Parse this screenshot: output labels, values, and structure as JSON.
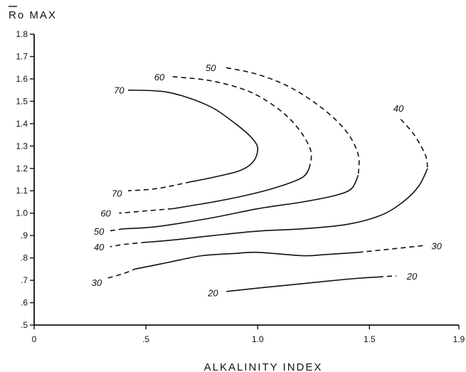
{
  "chart_data": {
    "type": "line",
    "title": "",
    "xlabel": "ALKALINITY INDEX",
    "ylabel_bar": "R",
    "ylabel_rest": "o MAX",
    "xlim": [
      0,
      1.9
    ],
    "ylim": [
      0.5,
      1.8
    ],
    "x_ticks": [
      {
        "value": 0,
        "label": "0"
      },
      {
        "value": 0.5,
        "label": ".5"
      },
      {
        "value": 1.0,
        "label": "1.0"
      },
      {
        "value": 1.5,
        "label": "1.5"
      },
      {
        "value": 1.9,
        "label": "1.9"
      }
    ],
    "y_ticks": [
      {
        "value": 0.5,
        "label": ".5"
      },
      {
        "value": 0.6,
        "label": ".6"
      },
      {
        "value": 0.7,
        "label": ".7"
      },
      {
        "value": 0.8,
        "label": ".8"
      },
      {
        "value": 0.9,
        "label": ".9"
      },
      {
        "value": 1.0,
        "label": "1.0"
      },
      {
        "value": 1.1,
        "label": "1.1"
      },
      {
        "value": 1.2,
        "label": "1.2"
      },
      {
        "value": 1.3,
        "label": "1.3"
      },
      {
        "value": 1.4,
        "label": "1.4"
      },
      {
        "value": 1.5,
        "label": "1.5"
      },
      {
        "value": 1.6,
        "label": "1.6"
      },
      {
        "value": 1.7,
        "label": "1.7"
      },
      {
        "value": 1.8,
        "label": "1.8"
      }
    ],
    "grid": false,
    "series": [
      {
        "name": "70",
        "segments": [
          {
            "dashed": false,
            "points": [
              [
                0.42,
                1.55
              ],
              [
                0.6,
                1.54
              ],
              [
                0.78,
                1.48
              ],
              [
                0.9,
                1.4
              ],
              [
                0.97,
                1.34
              ],
              [
                1.0,
                1.29
              ],
              [
                0.98,
                1.23
              ],
              [
                0.92,
                1.19
              ],
              [
                0.8,
                1.16
              ],
              [
                0.7,
                1.14
              ]
            ]
          },
          {
            "dashed": true,
            "points": [
              [
                0.7,
                1.14
              ],
              [
                0.55,
                1.11
              ],
              [
                0.42,
                1.1
              ]
            ]
          }
        ],
        "labels": [
          {
            "text": "70",
            "x": 0.38,
            "y": 1.55
          },
          {
            "text": "70",
            "x": 0.37,
            "y": 1.09
          }
        ]
      },
      {
        "name": "60",
        "segments": [
          {
            "dashed": true,
            "points": [
              [
                0.62,
                1.61
              ],
              [
                0.8,
                1.59
              ],
              [
                0.97,
                1.54
              ],
              [
                1.1,
                1.46
              ],
              [
                1.18,
                1.38
              ],
              [
                1.23,
                1.3
              ],
              [
                1.24,
                1.25
              ],
              [
                1.23,
                1.2
              ]
            ]
          },
          {
            "dashed": false,
            "points": [
              [
                1.23,
                1.2
              ],
              [
                1.2,
                1.16
              ],
              [
                1.1,
                1.12
              ],
              [
                0.95,
                1.08
              ],
              [
                0.8,
                1.05
              ],
              [
                0.62,
                1.02
              ]
            ]
          },
          {
            "dashed": true,
            "points": [
              [
                0.62,
                1.02
              ],
              [
                0.5,
                1.01
              ],
              [
                0.38,
                1.0
              ]
            ]
          }
        ],
        "labels": [
          {
            "text": "60",
            "x": 0.56,
            "y": 1.61
          },
          {
            "text": "60",
            "x": 0.32,
            "y": 1.0
          }
        ]
      },
      {
        "name": "50",
        "segments": [
          {
            "dashed": true,
            "points": [
              [
                0.86,
                1.65
              ],
              [
                1.0,
                1.62
              ],
              [
                1.15,
                1.56
              ],
              [
                1.3,
                1.46
              ],
              [
                1.4,
                1.36
              ],
              [
                1.45,
                1.26
              ],
              [
                1.45,
                1.17
              ]
            ]
          },
          {
            "dashed": false,
            "points": [
              [
                1.45,
                1.17
              ],
              [
                1.42,
                1.11
              ],
              [
                1.35,
                1.08
              ],
              [
                1.2,
                1.05
              ],
              [
                1.0,
                1.02
              ],
              [
                0.8,
                0.98
              ],
              [
                0.55,
                0.94
              ],
              [
                0.4,
                0.93
              ]
            ]
          },
          {
            "dashed": true,
            "points": [
              [
                0.4,
                0.93
              ],
              [
                0.33,
                0.92
              ]
            ]
          }
        ],
        "labels": [
          {
            "text": "50",
            "x": 0.79,
            "y": 1.65
          },
          {
            "text": "50",
            "x": 0.29,
            "y": 0.92
          }
        ]
      },
      {
        "name": "40",
        "segments": [
          {
            "dashed": true,
            "points": [
              [
                1.64,
                1.42
              ],
              [
                1.7,
                1.35
              ],
              [
                1.75,
                1.26
              ],
              [
                1.76,
                1.2
              ]
            ]
          },
          {
            "dashed": false,
            "points": [
              [
                1.76,
                1.2
              ],
              [
                1.72,
                1.12
              ],
              [
                1.65,
                1.05
              ],
              [
                1.55,
                0.99
              ],
              [
                1.4,
                0.95
              ],
              [
                1.2,
                0.93
              ],
              [
                1.0,
                0.92
              ],
              [
                0.8,
                0.9
              ],
              [
                0.62,
                0.88
              ],
              [
                0.5,
                0.87
              ]
            ]
          },
          {
            "dashed": true,
            "points": [
              [
                0.5,
                0.87
              ],
              [
                0.4,
                0.86
              ],
              [
                0.34,
                0.85
              ]
            ]
          }
        ],
        "labels": [
          {
            "text": "40",
            "x": 1.63,
            "y": 1.47
          },
          {
            "text": "40",
            "x": 0.29,
            "y": 0.85
          }
        ]
      },
      {
        "name": "30",
        "segments": [
          {
            "dashed": true,
            "points": [
              [
                0.33,
                0.71
              ],
              [
                0.4,
                0.73
              ],
              [
                0.45,
                0.75
              ]
            ]
          },
          {
            "dashed": false,
            "points": [
              [
                0.45,
                0.75
              ],
              [
                0.6,
                0.78
              ],
              [
                0.75,
                0.81
              ],
              [
                0.9,
                0.82
              ],
              [
                1.0,
                0.825
              ],
              [
                1.2,
                0.81
              ],
              [
                1.3,
                0.815
              ],
              [
                1.45,
                0.825
              ]
            ]
          },
          {
            "dashed": true,
            "points": [
              [
                1.45,
                0.825
              ],
              [
                1.6,
                0.84
              ],
              [
                1.74,
                0.855
              ]
            ]
          }
        ],
        "labels": [
          {
            "text": "30",
            "x": 0.28,
            "y": 0.69
          },
          {
            "text": "30",
            "x": 1.8,
            "y": 0.855
          }
        ]
      },
      {
        "name": "20",
        "segments": [
          {
            "dashed": false,
            "points": [
              [
                0.86,
                0.65
              ],
              [
                1.0,
                0.665
              ],
              [
                1.2,
                0.685
              ],
              [
                1.4,
                0.705
              ],
              [
                1.54,
                0.715
              ]
            ]
          },
          {
            "dashed": true,
            "points": [
              [
                1.54,
                0.715
              ],
              [
                1.62,
                0.72
              ]
            ]
          }
        ],
        "labels": [
          {
            "text": "20",
            "x": 0.8,
            "y": 0.645
          },
          {
            "text": "20",
            "x": 1.69,
            "y": 0.72
          }
        ]
      }
    ]
  }
}
